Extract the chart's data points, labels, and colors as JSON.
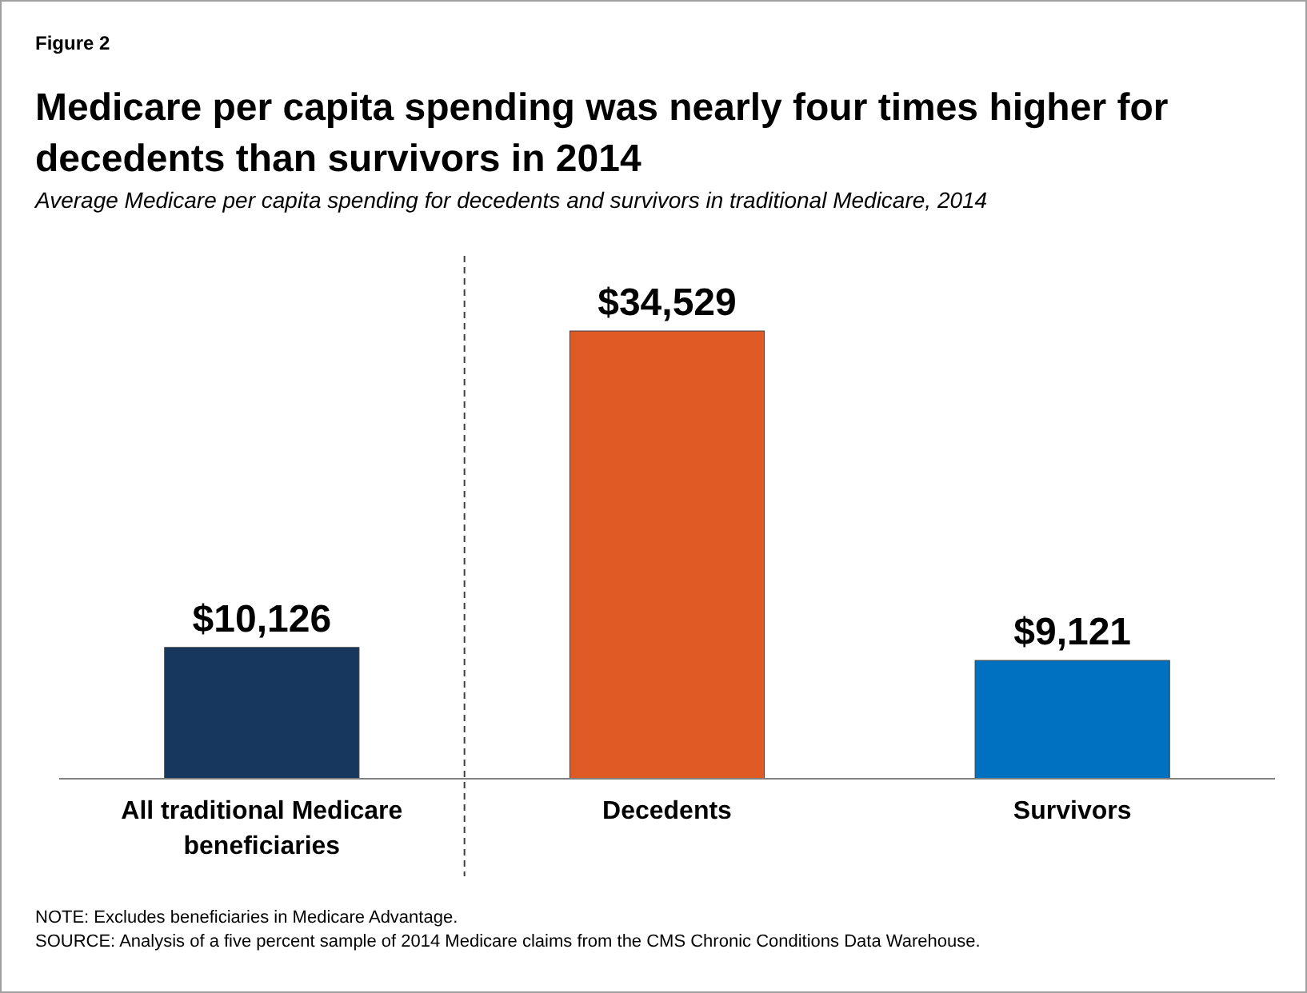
{
  "chart_data": {
    "type": "bar",
    "title": "Medicare per capita spending was nearly four times higher for decedents than survivors in 2014",
    "subtitle": "Average Medicare per capita spending for decedents and survivors in traditional Medicare, 2014",
    "annotations": [
      "Figure 2",
      "NOTE: Excludes beneficiaries in Medicare Advantage.",
      "SOURCE: Analysis of a five percent sample of 2014 Medicare claims from the CMS Chronic Conditions Data Warehouse."
    ],
    "categories": [
      "All traditional Medicare beneficiaries",
      "Decedents",
      "Survivors"
    ],
    "values": [
      10126,
      34529,
      9121
    ],
    "colors": [
      "#17375e",
      "#e05a26",
      "#0070c0"
    ],
    "value_labels": [
      "$10,126",
      "$34,529",
      "$9,121"
    ]
  }
}
